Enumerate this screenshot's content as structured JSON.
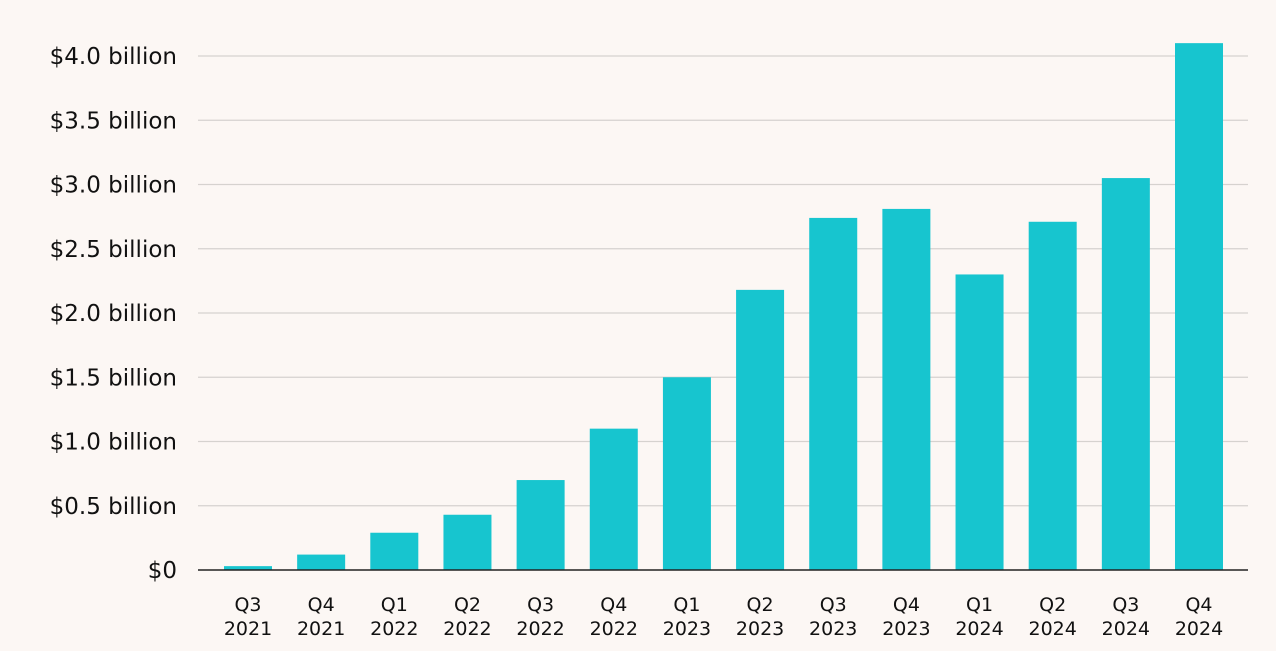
{
  "chart_data": {
    "type": "bar",
    "categories": [
      [
        "Q3",
        "2021"
      ],
      [
        "Q4",
        "2021"
      ],
      [
        "Q1",
        "2022"
      ],
      [
        "Q2",
        "2022"
      ],
      [
        "Q3",
        "2022"
      ],
      [
        "Q4",
        "2022"
      ],
      [
        "Q1",
        "2023"
      ],
      [
        "Q2",
        "2023"
      ],
      [
        "Q3",
        "2023"
      ],
      [
        "Q4",
        "2023"
      ],
      [
        "Q1",
        "2024"
      ],
      [
        "Q2",
        "2024"
      ],
      [
        "Q3",
        "2024"
      ],
      [
        "Q4",
        "2024"
      ]
    ],
    "values": [
      0.03,
      0.12,
      0.29,
      0.43,
      0.7,
      1.1,
      1.5,
      2.18,
      2.74,
      2.81,
      2.3,
      2.71,
      3.05,
      4.1
    ],
    "title": "",
    "xlabel": "",
    "ylabel": "",
    "unit": "billion USD",
    "ylim": [
      0,
      4.0
    ],
    "yticks": [
      {
        "value": 0,
        "label": "$0"
      },
      {
        "value": 0.5,
        "label": "$0.5 billion"
      },
      {
        "value": 1.0,
        "label": "$1.0 billion"
      },
      {
        "value": 1.5,
        "label": "$1.5 billion"
      },
      {
        "value": 2.0,
        "label": "$2.0 billion"
      },
      {
        "value": 2.5,
        "label": "$2.5 billion"
      },
      {
        "value": 3.0,
        "label": "$3.0 billion"
      },
      {
        "value": 3.5,
        "label": "$3.5 billion"
      },
      {
        "value": 4.0,
        "label": "$4.0 billion"
      }
    ],
    "grid": true,
    "legend": "none",
    "colors": {
      "bar": "#17c5cf",
      "grid": "#d6d2cf",
      "axis": "#222222",
      "background": "#fcf7f4",
      "text": "#111111"
    }
  }
}
